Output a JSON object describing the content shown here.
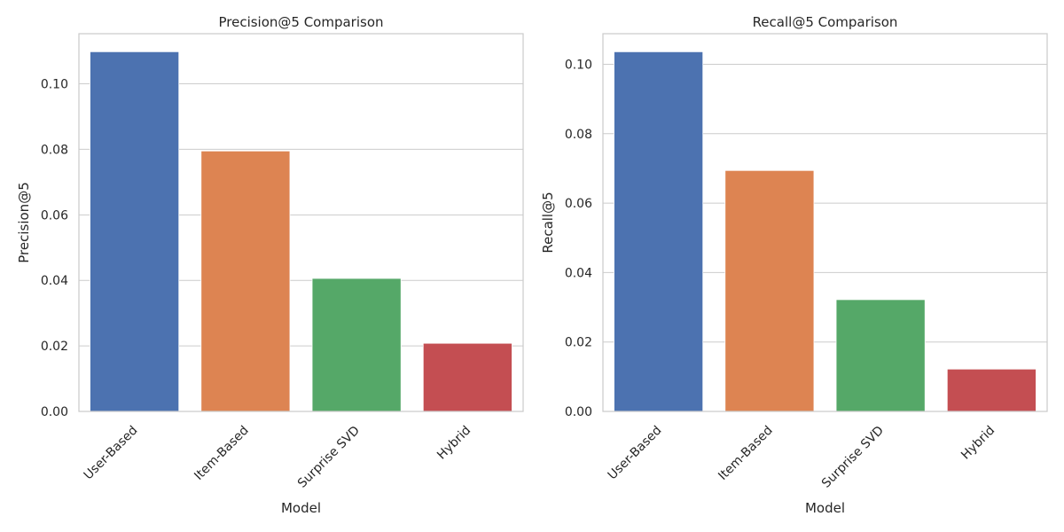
{
  "chart_data": [
    {
      "type": "bar",
      "title": "Precision@5 Comparison",
      "xlabel": "Model",
      "ylabel": "Precision@5",
      "categories": [
        "User-Based",
        "Item-Based",
        "Surprise SVD",
        "Hybrid"
      ],
      "values": [
        0.1098,
        0.0795,
        0.0406,
        0.0208
      ],
      "ylim": [
        0,
        0.1153
      ],
      "yticks": [
        "0.00",
        "0.02",
        "0.04",
        "0.06",
        "0.08",
        "0.10"
      ],
      "grid": true,
      "colors": [
        "#4c72b0",
        "#dd8452",
        "#55a868",
        "#c44e52"
      ]
    },
    {
      "type": "bar",
      "title": "Recall@5 Comparison",
      "xlabel": "Model",
      "ylabel": "Recall@5",
      "categories": [
        "User-Based",
        "Item-Based",
        "Surprise SVD",
        "Hybrid"
      ],
      "values": [
        0.1036,
        0.0694,
        0.0322,
        0.0122
      ],
      "ylim": [
        0,
        0.1088
      ],
      "yticks": [
        "0.00",
        "0.02",
        "0.04",
        "0.06",
        "0.08",
        "0.10"
      ],
      "grid": true,
      "colors": [
        "#4c72b0",
        "#dd8452",
        "#55a868",
        "#c44e52"
      ]
    }
  ]
}
